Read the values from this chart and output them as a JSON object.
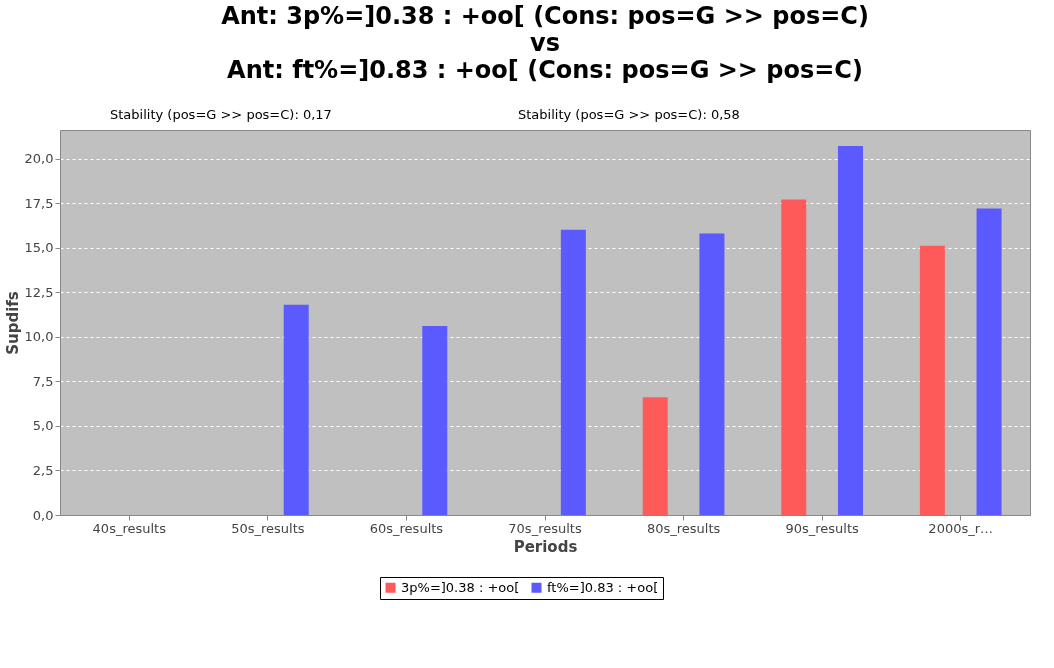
{
  "chart_data": {
    "type": "bar",
    "title": "Ant: 3p%=]0.38 : +oo[  (Cons: pos=G >> pos=C)\nvs\nAnt: ft%=]0.83 : +oo[  (Cons: pos=G >> pos=C)",
    "annotations": [
      "Stability (pos=G >> pos=C): 0,17",
      "Stability (pos=G >> pos=C): 0,58"
    ],
    "xlabel": "Periods",
    "ylabel": "Supdifs",
    "categories": [
      "40s_results",
      "50s_results",
      "60s_results",
      "70s_results",
      "80s_results",
      "90s_results",
      "2000s_r…"
    ],
    "series": [
      {
        "name": "3p%=]0.38 : +oo[",
        "color": "#ff5a5a",
        "values": [
          null,
          null,
          null,
          null,
          6.6,
          17.7,
          15.1
        ]
      },
      {
        "name": "ft%=]0.83 : +oo[",
        "color": "#5a5aff",
        "values": [
          null,
          11.8,
          10.6,
          16.0,
          15.8,
          20.7,
          17.2
        ]
      }
    ],
    "ylim": [
      0,
      21.6
    ],
    "yticks": [
      {
        "value": 0,
        "label": "0,0"
      },
      {
        "value": 2.5,
        "label": "2,5"
      },
      {
        "value": 5,
        "label": "5,0"
      },
      {
        "value": 7.5,
        "label": "7,5"
      },
      {
        "value": 10,
        "label": "10,0"
      },
      {
        "value": 12.5,
        "label": "12,5"
      },
      {
        "value": 15,
        "label": "15,0"
      },
      {
        "value": 17.5,
        "label": "17,5"
      },
      {
        "value": 20,
        "label": "20,0"
      }
    ],
    "grid": "y",
    "legend": "bottom"
  }
}
